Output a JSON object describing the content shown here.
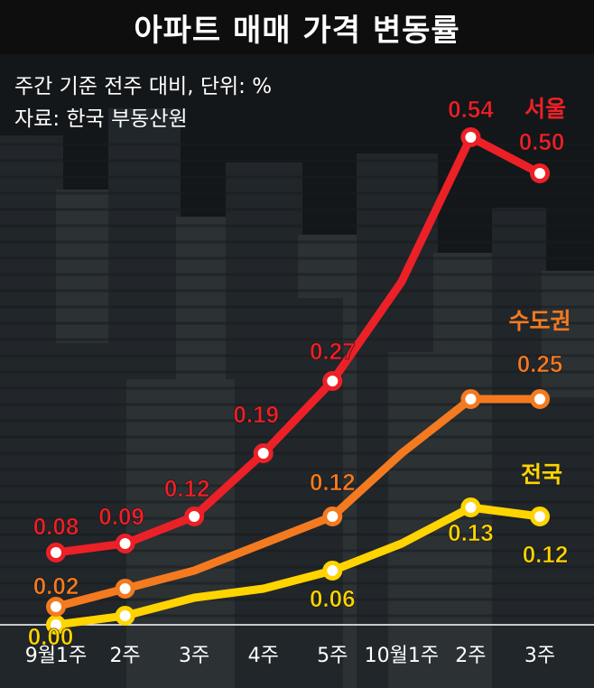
{
  "title": "아파트 매매 가격 변동률",
  "subtitle_lines": [
    "주간 기준 전주 대비, 단위: %",
    "자료: 한국 부동산원"
  ],
  "colors": {
    "background": "#141719",
    "building_dark": "#23282c",
    "building_mid": "#2f3438",
    "seoul": "#ec2027",
    "sudogwon": "#f47a20",
    "national": "#ffd400",
    "baseline": "#ffffff"
  },
  "chart_data": {
    "type": "line",
    "categories": [
      "9월1주",
      "2주",
      "3주",
      "4주",
      "5주",
      "10월1주",
      "2주",
      "3주"
    ],
    "ylim": [
      0,
      0.6
    ],
    "series": [
      {
        "name": "서울",
        "color": "#ec2027",
        "values": [
          0.08,
          0.09,
          0.12,
          0.19,
          0.27,
          0.38,
          0.54,
          0.5
        ],
        "labels": [
          "0.08",
          "0.09",
          "0.12",
          "0.19",
          "0.27",
          null,
          "0.54",
          "0.50"
        ],
        "markers": [
          true,
          true,
          true,
          true,
          true,
          false,
          true,
          true
        ]
      },
      {
        "name": "수도권",
        "color": "#f47a20",
        "values": [
          0.02,
          0.04,
          0.06,
          0.09,
          0.12,
          0.19,
          0.25,
          0.25
        ],
        "labels": [
          "0.02",
          null,
          null,
          null,
          "0.12",
          null,
          null,
          "0.25"
        ],
        "markers": [
          true,
          true,
          false,
          false,
          true,
          false,
          true,
          true
        ]
      },
      {
        "name": "전국",
        "color": "#ffd400",
        "values": [
          0.0,
          0.01,
          0.03,
          0.04,
          0.06,
          0.09,
          0.13,
          0.12
        ],
        "labels": [
          "0.00",
          null,
          null,
          null,
          "0.06",
          null,
          "0.13",
          "0.12"
        ],
        "markers": [
          true,
          true,
          false,
          false,
          true,
          false,
          true,
          true
        ]
      }
    ]
  }
}
